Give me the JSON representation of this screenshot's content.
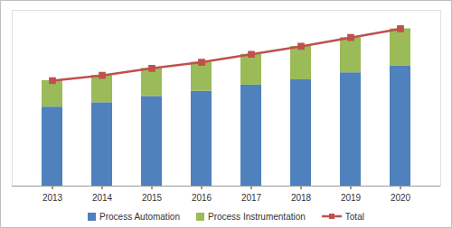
{
  "chart_data": {
    "type": "bar",
    "stacked": true,
    "legend": "bottom",
    "grid": false,
    "tick_labels": "x",
    "categories": [
      "2013",
      "2014",
      "2015",
      "2016",
      "2017",
      "2018",
      "2019",
      "2020"
    ],
    "ylim": [
      0,
      200
    ],
    "series": [
      {
        "name": "Process Automation",
        "type": "bar",
        "color": "#4f81bd",
        "values": [
          90,
          95,
          102,
          108,
          115,
          121,
          129,
          137
        ]
      },
      {
        "name": "Process Instrumentation",
        "type": "bar",
        "color": "#9bbb59",
        "values": [
          30,
          31,
          32,
          33,
          35,
          38,
          40,
          42
        ]
      },
      {
        "name": "Total",
        "type": "line",
        "color": "#c0504d",
        "marker": "square",
        "line_style": "solid",
        "values": [
          120,
          126,
          134,
          141,
          150,
          159,
          169,
          179
        ]
      }
    ]
  }
}
